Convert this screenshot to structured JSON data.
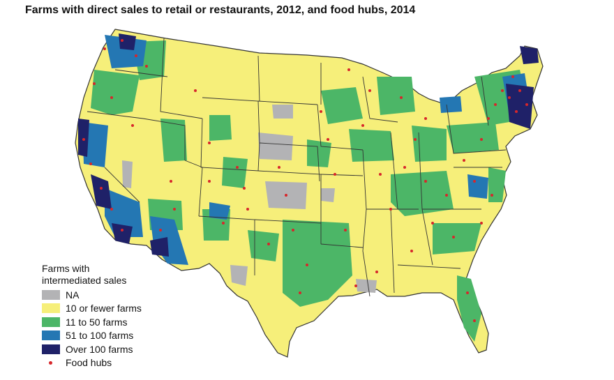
{
  "title": "Farms with direct sales to retail or restaurants, 2012, and food hubs, 2014",
  "legend": {
    "title_line1": "Farms with",
    "title_line2": "intermediated sales",
    "items": [
      {
        "label": "NA",
        "color": "#b3b3b5"
      },
      {
        "label": "10 or fewer farms",
        "color": "#f6ef7a"
      },
      {
        "label": "11 to 50 farms",
        "color": "#4cb667"
      },
      {
        "label": "51 to 100 farms",
        "color": "#2477b3"
      },
      {
        "label": "Over 100 farms",
        "color": "#1f2168"
      }
    ],
    "food_hubs_label": "Food hubs",
    "food_hubs_color": "#d7262b"
  }
}
